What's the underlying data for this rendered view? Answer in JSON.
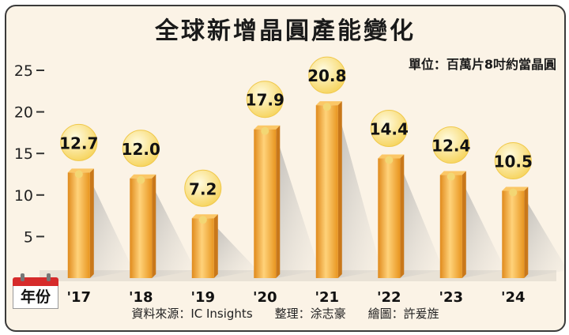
{
  "title": "全球新增晶圓產能變化",
  "unit": "單位：百萬片8吋約當晶圓",
  "x_axis_label": "年份",
  "footer": {
    "source": "資料來源：IC Insights",
    "editor": "整理：涂志豪",
    "illustrator": "繪圖：許爰旌"
  },
  "colors": {
    "bar": "#f5a623",
    "bar_highlight": "#ffd27a",
    "bar_shadow": "#d9831a",
    "bulb": "#fbe48a",
    "background": "#fbf3e6"
  },
  "icons": [
    "calendar-icon",
    "lightbulb-icon"
  ],
  "chart_data": {
    "type": "bar",
    "categories": [
      "'17",
      "'18",
      "'19",
      "'20",
      "'21",
      "'22",
      "'23",
      "'24"
    ],
    "values": [
      12.7,
      12.0,
      7.2,
      17.9,
      20.8,
      14.4,
      12.4,
      10.5
    ],
    "value_labels": [
      "12.7",
      "12.0",
      "7.2",
      "17.9",
      "20.8",
      "14.4",
      "12.4",
      "10.5"
    ],
    "y_ticks": [
      "5",
      "10",
      "15",
      "20",
      "25"
    ],
    "ylim": [
      0,
      25
    ],
    "xlabel": "年份",
    "ylabel": "",
    "grid": false,
    "legend": "none"
  }
}
